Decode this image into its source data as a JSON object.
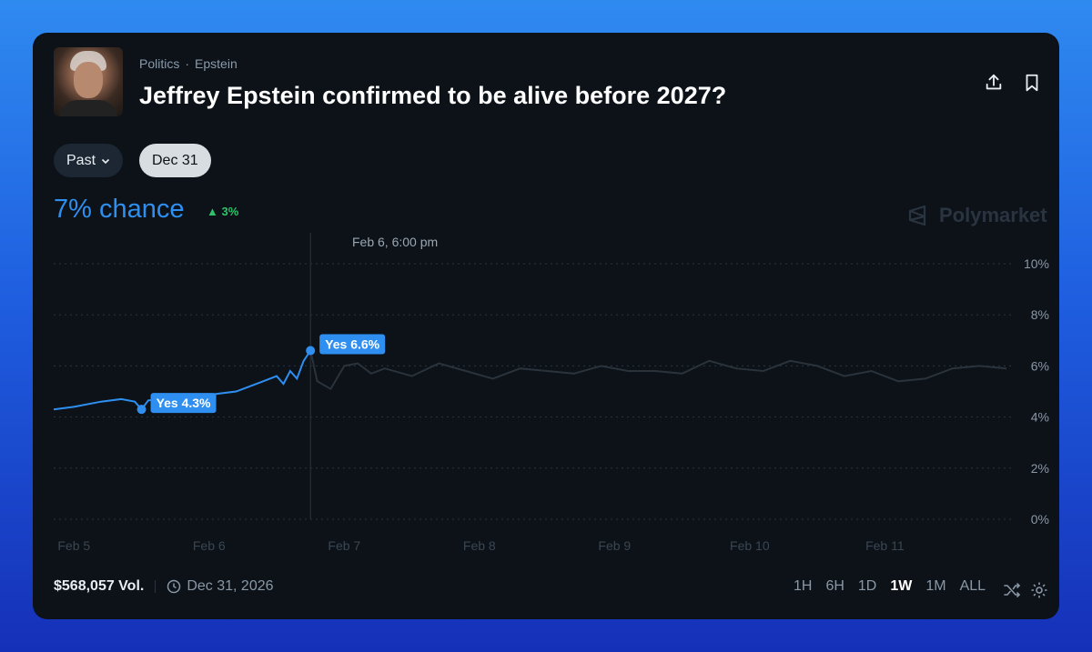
{
  "market": {
    "breadcrumb": [
      "Politics",
      "Epstein"
    ],
    "title": "Jeffrey Epstein confirmed to be alive before 2027?",
    "filter_label": "Past",
    "date_chip": "Dec 31",
    "chance": "7% chance",
    "change": "3%",
    "brand": "Polymarket",
    "hover_time": "Feb 6, 6:00 pm"
  },
  "footer": {
    "volume": "$568,057 Vol.",
    "end_date": "Dec 31, 2026",
    "ranges": [
      "1H",
      "6H",
      "1D",
      "1W",
      "1M",
      "ALL"
    ],
    "active_range": "1W"
  },
  "colors": {
    "accent": "#2e8ff0",
    "up": "#2ec36a",
    "background": "#0c1218"
  },
  "icons": [
    "share-icon",
    "bookmark-icon",
    "chevron-down-icon",
    "clock-icon",
    "shuffle-icon",
    "gear-icon",
    "polymarket-logo-icon",
    "triangle-up-icon"
  ],
  "chart_data": {
    "type": "line",
    "x_labels": [
      "Feb 5",
      "Feb 6",
      "Feb 7",
      "Feb 8",
      "Feb 9",
      "Feb 10",
      "Feb 11"
    ],
    "y_ticks": [
      "10%",
      "8%",
      "6%",
      "4%",
      "2%",
      "0%"
    ],
    "ylim": [
      0,
      10
    ],
    "grid": true,
    "hover_x": 6.75,
    "annotations": [
      {
        "text": "Yes 4.3%",
        "x": 5.5,
        "y": 4.3
      },
      {
        "text": "Yes 6.6%",
        "x": 6.75,
        "y": 6.6
      }
    ],
    "series": [
      {
        "values": [
          [
            4.85,
            4.3
          ],
          [
            5.0,
            4.4
          ],
          [
            5.2,
            4.6
          ],
          [
            5.35,
            4.7
          ],
          [
            5.45,
            4.6
          ],
          [
            5.5,
            4.3
          ],
          [
            5.55,
            4.65
          ],
          [
            5.9,
            4.8
          ],
          [
            6.05,
            4.9
          ],
          [
            6.2,
            5.0
          ],
          [
            6.3,
            5.2
          ],
          [
            6.4,
            5.4
          ],
          [
            6.5,
            5.6
          ],
          [
            6.55,
            5.3
          ],
          [
            6.6,
            5.8
          ],
          [
            6.65,
            5.5
          ],
          [
            6.7,
            6.2
          ],
          [
            6.75,
            6.6
          ],
          [
            6.8,
            5.4
          ],
          [
            6.9,
            5.1
          ],
          [
            7.0,
            6.0
          ],
          [
            7.1,
            6.1
          ],
          [
            7.2,
            5.7
          ],
          [
            7.3,
            5.9
          ],
          [
            7.5,
            5.6
          ],
          [
            7.7,
            6.1
          ],
          [
            7.9,
            5.8
          ],
          [
            8.1,
            5.5
          ],
          [
            8.3,
            5.9
          ],
          [
            8.5,
            5.8
          ],
          [
            8.7,
            5.7
          ],
          [
            8.9,
            6.0
          ],
          [
            9.1,
            5.8
          ],
          [
            9.3,
            5.8
          ],
          [
            9.5,
            5.7
          ],
          [
            9.7,
            6.2
          ],
          [
            9.9,
            5.9
          ],
          [
            10.1,
            5.8
          ],
          [
            10.3,
            6.2
          ],
          [
            10.5,
            6.0
          ],
          [
            10.7,
            5.6
          ],
          [
            10.9,
            5.8
          ],
          [
            11.1,
            5.4
          ],
          [
            11.3,
            5.5
          ],
          [
            11.5,
            5.9
          ],
          [
            11.7,
            6.0
          ],
          [
            11.9,
            5.9
          ]
        ]
      }
    ]
  }
}
